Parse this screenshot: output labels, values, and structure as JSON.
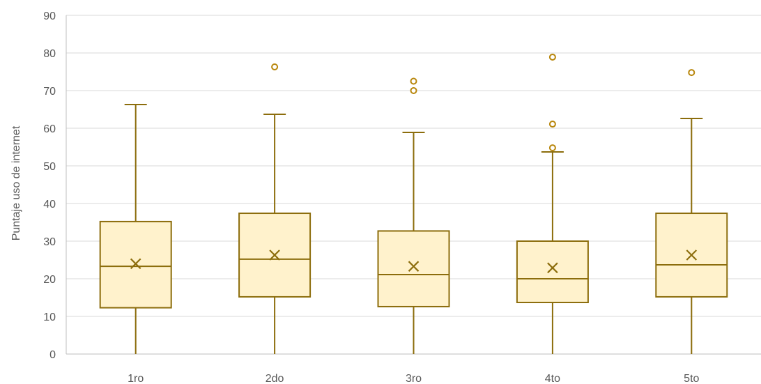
{
  "chart_data": {
    "type": "boxplot",
    "title": "",
    "xlabel": "",
    "ylabel": "Puntaje uso de internet",
    "ylim": [
      0,
      90
    ],
    "yticks": [
      0,
      10,
      20,
      30,
      40,
      50,
      60,
      70,
      80,
      90
    ],
    "grid": true,
    "legend": "none",
    "categories": [
      "1ro",
      "2do",
      "3ro",
      "4to",
      "5to"
    ],
    "boxes": [
      {
        "category": "1ro",
        "min": 0,
        "q1": 12.3,
        "median": 23.3,
        "q3": 35.2,
        "max": 66.3,
        "mean": 24.0,
        "outliers": []
      },
      {
        "category": "2do",
        "min": 0,
        "q1": 15.2,
        "median": 25.2,
        "q3": 37.4,
        "max": 63.7,
        "mean": 26.3,
        "outliers": [
          76.3
        ]
      },
      {
        "category": "3ro",
        "min": 0,
        "q1": 12.6,
        "median": 21.1,
        "q3": 32.7,
        "max": 58.9,
        "mean": 23.3,
        "outliers": [
          72.5,
          70.0
        ]
      },
      {
        "category": "4to",
        "min": 0,
        "q1": 13.7,
        "median": 20.0,
        "q3": 30.0,
        "max": 53.7,
        "mean": 22.9,
        "outliers": [
          78.9,
          61.1,
          54.8
        ]
      },
      {
        "category": "5to",
        "min": 0,
        "q1": 15.2,
        "median": 23.7,
        "q3": 37.4,
        "max": 62.6,
        "mean": 26.3,
        "outliers": [
          74.8
        ]
      }
    ],
    "colors": {
      "box_fill": "#FFF2CC",
      "box_stroke": "#8C6D0C",
      "outlier_stroke": "#B8860B",
      "grid": "#D9D9D9",
      "axis": "#BFBFBF",
      "text": "#595959"
    }
  }
}
